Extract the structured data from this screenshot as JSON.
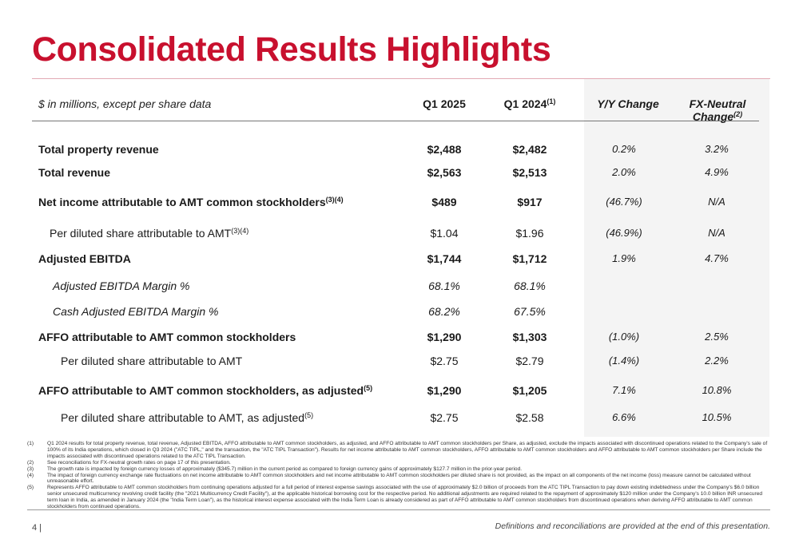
{
  "title": "Consolidated Results Highlights",
  "header": {
    "label": "$ in millions, except per share data",
    "col1": "Q1 2025",
    "col2": "Q1 2024",
    "col2_sup": "(1)",
    "col3": "Y/Y Change",
    "col4": "FX-Neutral Change",
    "col4_sup": "(2)"
  },
  "rows": [
    {
      "label": "Total property revenue",
      "sup": "",
      "q1_2025": "$2,488",
      "q1_2024": "$2,482",
      "yy": "0.2%",
      "fx": "3.2%"
    },
    {
      "label": "Total revenue",
      "sup": "",
      "q1_2025": "$2,563",
      "q1_2024": "$2,513",
      "yy": "2.0%",
      "fx": "4.9%"
    },
    {
      "label": "Net income attributable to AMT common stockholders",
      "sup": "(3)(4)",
      "q1_2025": "$489",
      "q1_2024": "$917",
      "yy": "(46.7%)",
      "fx": "N/A"
    },
    {
      "label": "Per diluted share attributable to AMT",
      "sup": "(3)(4)",
      "q1_2025": "$1.04",
      "q1_2024": "$1.96",
      "yy": "(46.9%)",
      "fx": "N/A"
    },
    {
      "label": "Adjusted EBITDA",
      "sup": "",
      "q1_2025": "$1,744",
      "q1_2024": "$1,712",
      "yy": "1.9%",
      "fx": "4.7%"
    },
    {
      "label": "Adjusted EBITDA Margin %",
      "sup": "",
      "q1_2025": "68.1%",
      "q1_2024": "68.1%",
      "yy": "",
      "fx": ""
    },
    {
      "label": "Cash Adjusted EBITDA Margin %",
      "sup": "",
      "q1_2025": "68.2%",
      "q1_2024": "67.5%",
      "yy": "",
      "fx": ""
    },
    {
      "label": "AFFO attributable to AMT common stockholders",
      "sup": "",
      "q1_2025": "$1,290",
      "q1_2024": "$1,303",
      "yy": "(1.0%)",
      "fx": "2.5%"
    },
    {
      "label": "Per diluted share attributable to AMT",
      "sup": "",
      "q1_2025": "$2.75",
      "q1_2024": "$2.79",
      "yy": "(1.4%)",
      "fx": "2.2%"
    },
    {
      "label": "AFFO attributable to AMT common stockholders, as adjusted",
      "sup": "(5)",
      "q1_2025": "$1,290",
      "q1_2024": "$1,205",
      "yy": "7.1%",
      "fx": "10.8%"
    },
    {
      "label": "Per diluted share attributable to AMT, as adjusted",
      "sup": "(5)",
      "q1_2025": "$2.75",
      "q1_2024": "$2.58",
      "yy": "6.6%",
      "fx": "10.5%"
    }
  ],
  "footnotes": [
    {
      "num": "(1)",
      "text": "Q1 2024 results for total property revenue, total revenue, Adjusted EBITDA, AFFO attributable to AMT common stockholders, as adjusted, and AFFO attributable to AMT common stockholders per Share, as adjusted, exclude the impacts associated with discontinued operations related to the Company's sale of 100% of its India operations, which closed in Q3 2024 (\"ATC TIPL,\" and the transaction, the \"ATC TIPL Transaction\"). Results for net income attributable to AMT common stockholders, AFFO attributable to AMT common stockholders and AFFO attributable to AMT common stockholders per Share include the impacts associated with discontinued operations related to the ATC TIPL Transaction."
    },
    {
      "num": "(2)",
      "text": "See reconciliations for FX-neutral growth rates on page 17 of this presentation."
    },
    {
      "num": "(3)",
      "text": "The growth rate is impacted by foreign currency losses of approximately ($345.7) million in the current period as compared to foreign currency gains of approximately $127.7 million in the prior-year period."
    },
    {
      "num": "(4)",
      "text": "The impact of foreign currency exchange rate fluctuations on net income attributable to AMT common stockholders and net income attributable to AMT common stockholders per diluted share is not provided, as the impact on all components of the net income (loss) measure cannot be calculated without unreasonable effort."
    },
    {
      "num": "(5)",
      "text": "Represents AFFO attributable to AMT common stockholders from continuing operations adjusted for a full period of interest expense savings associated with the use of approximately $2.0 billion of proceeds from the ATC TIPL Transaction to pay down existing indebtedness under the Company's $6.0 billion senior unsecured multicurrency revolving credit facility (the \"2021 Multicurrency Credit Facility\"), at the applicable historical borrowing cost for the respective period.  No additional adjustments are required related to the repayment of approximately $120 million under the Company's 10.0 billion INR unsecured term loan in India, as amended in January 2024 (the \"India Term Loan\"), as the historical interest expense associated with the India Term Loan is already considered as part of AFFO attributable to AMT common stockholders from discontinued operations when deriving AFFO attributable to AMT common stockholders from continued operations."
    }
  ],
  "footer": {
    "page": "4 |",
    "note": "Definitions and reconciliations are provided at the end of this presentation."
  }
}
